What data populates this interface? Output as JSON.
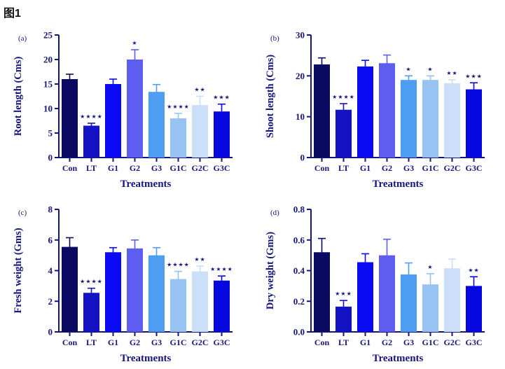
{
  "figure": {
    "title": "图1"
  },
  "colors": {
    "background": "#ffffff",
    "title_text": "#111111",
    "axis": "#15157A",
    "text": "#15157A",
    "star": "#15157A",
    "bar_palette": [
      "#0A0A62",
      "#1313C4",
      "#0A0AF5",
      "#5D5DF0",
      "#4F9DF3",
      "#96C3F2",
      "#CBDFF8",
      "#0707E0"
    ]
  },
  "chart_data": [
    {
      "type": "bar",
      "panel_label": "(a)",
      "title": "",
      "ylabel": "Root length (Cms)",
      "xlabel": "Treatments",
      "categories": [
        "Con",
        "LT",
        "G1",
        "G2",
        "G3",
        "G1C",
        "G2C",
        "G3C"
      ],
      "values": [
        16.0,
        6.5,
        15.0,
        20.0,
        13.4,
        8.0,
        10.7,
        9.4
      ],
      "errors": [
        1.0,
        0.5,
        1.0,
        2.0,
        1.5,
        1.0,
        1.8,
        1.5
      ],
      "significance": [
        "",
        "****",
        "",
        "*",
        "",
        "****",
        "**",
        "***"
      ],
      "ylim": [
        0,
        25
      ],
      "ytick_step": 5,
      "tick_decimals": 0,
      "grid": false,
      "legend": "none",
      "error_bars": "upper"
    },
    {
      "type": "bar",
      "panel_label": "(b)",
      "title": "",
      "ylabel": "Shoot length (Cms)",
      "xlabel": "Treatments",
      "categories": [
        "Con",
        "LT",
        "G1",
        "G2",
        "G3",
        "G1C",
        "G2C",
        "G3C"
      ],
      "values": [
        22.8,
        11.7,
        22.3,
        23.1,
        19.0,
        19.0,
        18.2,
        16.7
      ],
      "errors": [
        1.6,
        1.5,
        1.5,
        2.0,
        1.0,
        1.0,
        0.8,
        1.6
      ],
      "significance": [
        "",
        "****",
        "",
        "",
        "*",
        "*",
        "**",
        "***"
      ],
      "ylim": [
        0,
        30
      ],
      "ytick_step": 10,
      "tick_decimals": 0,
      "grid": false,
      "legend": "none",
      "error_bars": "upper"
    },
    {
      "type": "bar",
      "panel_label": "(c)",
      "title": "",
      "ylabel": "Fresh weight (Gms)",
      "xlabel": "Treatments",
      "categories": [
        "Con",
        "LT",
        "G1",
        "G2",
        "G3",
        "G1C",
        "G2C",
        "G3C"
      ],
      "values": [
        5.55,
        2.55,
        5.2,
        5.45,
        5.0,
        3.45,
        3.95,
        3.35
      ],
      "errors": [
        0.6,
        0.3,
        0.3,
        0.55,
        0.5,
        0.5,
        0.35,
        0.3
      ],
      "significance": [
        "",
        "****",
        "",
        "",
        "",
        "****",
        "**",
        "****"
      ],
      "ylim": [
        0,
        8
      ],
      "ytick_step": 2,
      "tick_decimals": 0,
      "grid": false,
      "legend": "none",
      "error_bars": "upper"
    },
    {
      "type": "bar",
      "panel_label": "(d)",
      "title": "",
      "ylabel": "Dry weight (Gms)",
      "xlabel": "Treatments",
      "categories": [
        "Con",
        "LT",
        "G1",
        "G2",
        "G3",
        "G1C",
        "G2C",
        "G3C"
      ],
      "values": [
        0.52,
        0.165,
        0.455,
        0.5,
        0.375,
        0.31,
        0.415,
        0.3
      ],
      "errors": [
        0.09,
        0.04,
        0.055,
        0.105,
        0.075,
        0.07,
        0.06,
        0.06
      ],
      "significance": [
        "",
        "***",
        "",
        "",
        "",
        "*",
        "",
        "**"
      ],
      "ylim": [
        0,
        0.8
      ],
      "ytick_step": 0.2,
      "tick_decimals": 1,
      "grid": false,
      "legend": "none",
      "error_bars": "upper"
    }
  ]
}
